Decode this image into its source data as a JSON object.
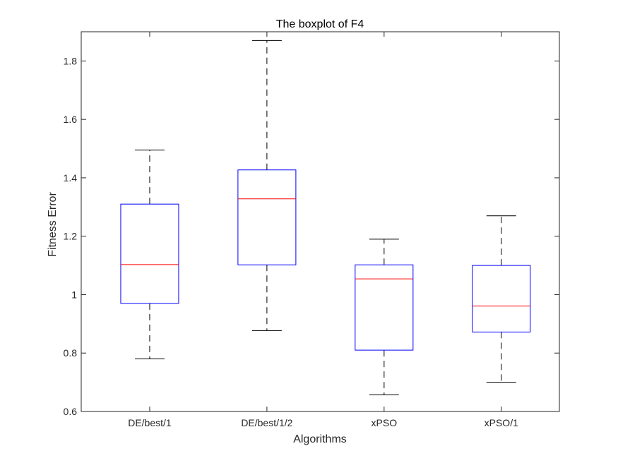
{
  "chart_data": {
    "type": "boxplot",
    "title": "The boxplot of F4",
    "xlabel": "Algorithms",
    "ylabel": "Fitness Error",
    "categories": [
      "DE/best/1",
      "DE/best/1/2",
      "xPSO",
      "xPSO/1"
    ],
    "boxes": [
      {
        "name": "DE/best/1",
        "min": 0.78,
        "q1": 0.97,
        "median": 1.103,
        "q3": 1.31,
        "max": 1.495
      },
      {
        "name": "DE/best/1/2",
        "min": 0.877,
        "q1": 1.102,
        "median": 1.328,
        "q3": 1.427,
        "max": 1.87
      },
      {
        "name": "xPSO",
        "min": 0.657,
        "q1": 0.81,
        "median": 1.054,
        "q3": 1.102,
        "max": 1.19
      },
      {
        "name": "xPSO/1",
        "min": 0.7,
        "q1": 0.872,
        "median": 0.961,
        "q3": 1.1,
        "max": 1.27
      }
    ],
    "ylim": [
      0.6,
      1.9
    ],
    "yticks": [
      0.6,
      0.8,
      1,
      1.2,
      1.4,
      1.6,
      1.8
    ],
    "ytick_labels": [
      "0.6",
      "0.8",
      "1",
      "1.2",
      "1.4",
      "1.6",
      "1.8"
    ],
    "grid": false,
    "legend": "none",
    "colors": {
      "box": "#0000ff",
      "median": "#ff0000",
      "whisker": "#000000",
      "axes": "#262626",
      "background": "#ffffff"
    }
  }
}
